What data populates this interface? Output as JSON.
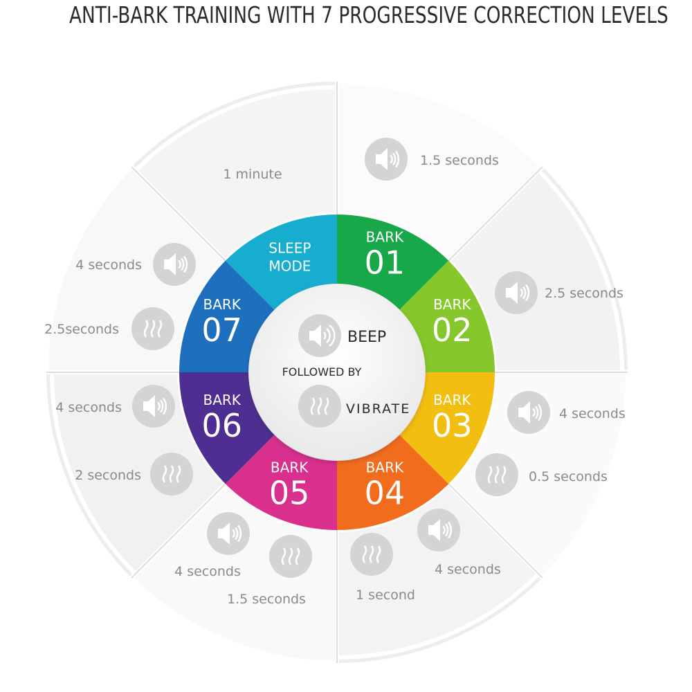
{
  "title": "ANTI-BARK TRAINING WITH 7 PROGRESSIVE CORRECTION LEVELS",
  "hub": {
    "beep_label": "BEEP",
    "followed_label": "FOLLOWED BY",
    "vibrate_label": "VIBRATE",
    "beep_icon": "speaker-icon",
    "vibrate_icon": "vibration-icon"
  },
  "sleep_mode": {
    "line1": "SLEEP",
    "line2": "MODE",
    "duration": "1 minute",
    "color": "#17ADCF"
  },
  "levels": [
    {
      "word": "BARK",
      "number": "01",
      "color": "#18A84A",
      "beep": "1.5 seconds",
      "vibrate": ""
    },
    {
      "word": "BARK",
      "number": "02",
      "color": "#86C72B",
      "beep": "2.5 seconds",
      "vibrate": ""
    },
    {
      "word": "BARK",
      "number": "03",
      "color": "#F2BE10",
      "beep": "4 seconds",
      "vibrate": "0.5 seconds"
    },
    {
      "word": "BARK",
      "number": "04",
      "color": "#F26C1E",
      "beep": "4 seconds",
      "vibrate": "1 second"
    },
    {
      "word": "BARK",
      "number": "05",
      "color": "#D9308E",
      "beep": "4 seconds",
      "vibrate": "1.5 seconds"
    },
    {
      "word": "BARK",
      "number": "06",
      "color": "#4E2F91",
      "beep": "4 seconds",
      "vibrate": "2 seconds"
    },
    {
      "word": "BARK",
      "number": "07",
      "color": "#1E6FBE",
      "beep": "4 seconds",
      "vibrate": "2.5seconds"
    }
  ]
}
